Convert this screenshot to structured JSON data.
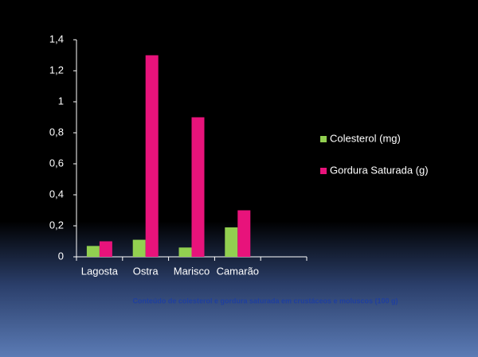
{
  "chart_data": {
    "type": "bar",
    "categories": [
      "Lagosta",
      "Ostra",
      "Marisco",
      "Camarão",
      null
    ],
    "series": [
      {
        "name": "Colesterol (mg)",
        "color": "#92d050",
        "values": [
          0.07,
          0.11,
          0.06,
          0.19,
          null
        ]
      },
      {
        "name": "Gordura Saturada (g)",
        "color": "#e8137b",
        "values": [
          0.1,
          1.3,
          0.9,
          0.3,
          null
        ]
      }
    ],
    "ylim": [
      0,
      1.4
    ],
    "yticks": [
      0,
      {
        "value": 0.2,
        "label": "0,2"
      },
      {
        "value": 0.4,
        "label": "0,4"
      },
      {
        "value": 0.6,
        "label": "0,6"
      },
      {
        "value": 0.8,
        "label": "0,8"
      },
      1,
      {
        "value": 1.2,
        "label": "1,2"
      },
      {
        "value": 1.4,
        "label": "1,4"
      }
    ],
    "grid": false,
    "legend": "right",
    "annotation": "Conteúdo de colesterol e gordura saturada em crustáceos e moluscos (100  g)"
  }
}
